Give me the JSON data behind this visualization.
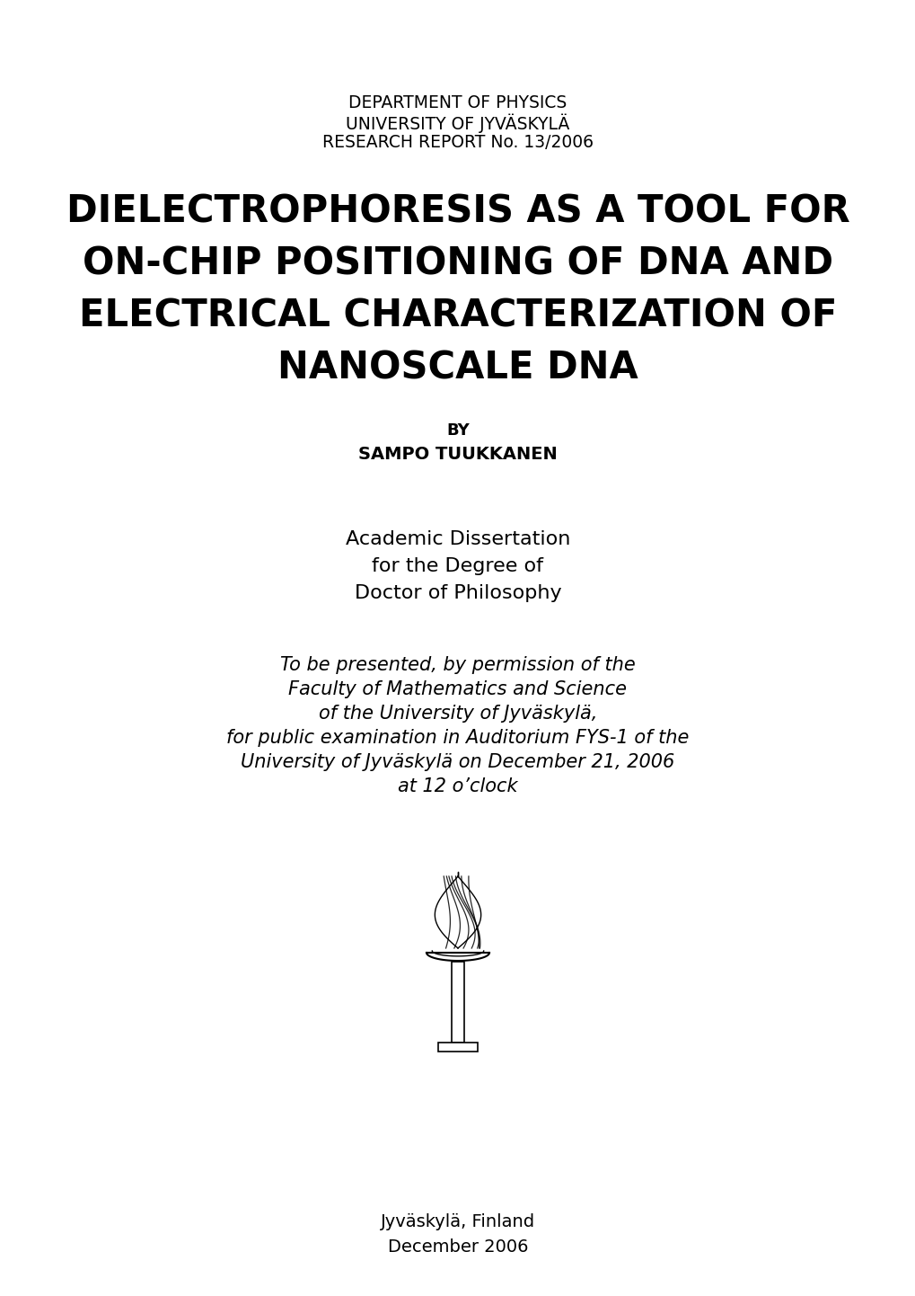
{
  "background_color": "#ffffff",
  "header_line1": "DEPARTMENT OF PHYSICS",
  "header_line2": "UNIVERSITY OF JYVÄSKYLÄ",
  "header_line3": "RESEARCH REPORT No. 13/2006",
  "header_fontsize": 13.5,
  "title_line1": "DIELECTROPHORESIS AS A TOOL FOR",
  "title_line2": "ON-CHIP POSITIONING OF DNA AND",
  "title_line3": "ELECTRICAL CHARACTERIZATION OF",
  "title_line4": "NANOSCALE DNA",
  "title_fontsize": 30,
  "by_label": "BY",
  "by_fontsize": 13,
  "author": "SAMPO TUUKKANEN",
  "author_fontsize": 14,
  "dissertation_lines": [
    "Academic Dissertation",
    "for the Degree of",
    "Doctor of Philosophy"
  ],
  "dissertation_fontsize": 16,
  "italic_lines": [
    "To be presented, by permission of the",
    "Faculty of Mathematics and Science",
    "of the University of Jyväskylä,",
    "for public examination in Auditorium FYS-1 of the",
    "University of Jyväskylä on December 21, 2006",
    "at 12 o’clock"
  ],
  "italic_fontsize": 15,
  "city_line": "Jyväskylä, Finland",
  "date_line": "December 2006",
  "footer_fontsize": 14
}
